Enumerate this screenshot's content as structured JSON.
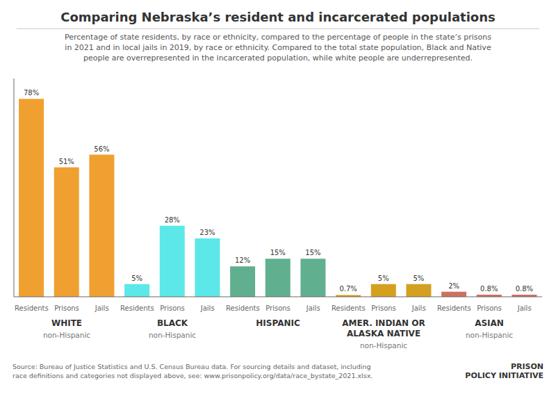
{
  "chart_data": {
    "type": "bar",
    "title": "Comparing Nebraska’s resident and incarcerated populations",
    "subtitle": "Percentage of state residents, by race or ethnicity, compared to the percentage of people in the state’s prisons\nin 2021 and in local jails in 2019, by race or ethnicity. Compared to the total state population, Black and Native\npeople are overrepresented in the incarcerated population, while white people are underrepresented.",
    "categories": [
      "Residents",
      "Prisons",
      "Jails",
      "Residents",
      "Prisons",
      "Jails",
      "Residents",
      "Prisons",
      "Jails",
      "Residents",
      "Prisons",
      "Jails",
      "Residents",
      "Prisons",
      "Jails"
    ],
    "values": [
      78,
      51,
      56,
      5,
      28,
      23,
      12,
      15,
      15,
      0.7,
      5,
      5,
      2,
      0.8,
      0.8
    ],
    "value_labels": [
      "78%",
      "51%",
      "56%",
      "5%",
      "28%",
      "23%",
      "12%",
      "15%",
      "15%",
      "0.7%",
      "5%",
      "5%",
      "2%",
      "0.8%",
      "0.8%"
    ],
    "colors": [
      "#f0a030",
      "#f0a030",
      "#f0a030",
      "#5ce8e8",
      "#5ce8e8",
      "#5ce8e8",
      "#60b090",
      "#60b090",
      "#60b090",
      "#d4a020",
      "#d4a020",
      "#d4a020",
      "#d07060",
      "#d07060",
      "#d07060"
    ],
    "groups": [
      {
        "label": "WHITE",
        "sublabel": "non-Hispanic"
      },
      {
        "label": "BLACK",
        "sublabel": "non-Hispanic"
      },
      {
        "label": "HISPANIC"
      },
      {
        "label": "AMER. INDIAN OR\nALASKA NATIVE",
        "sublabel": "non-Hispanic"
      },
      {
        "label": "ASIAN",
        "sublabel": "non-Hispanic"
      }
    ],
    "ylim": [
      0,
      86
    ],
    "tick_labels": "x",
    "grid": false,
    "data_labels": true,
    "source": "Source: Bureau of Justice Statistics and U.S. Census Bureau data. For sourcing details and dataset, including\nrace definitions and categories not displayed above, see: www.prisonpolicy.org/data/race_bystate_2021.xlsx.",
    "annotations": [
      "PRISON\nPOLICY INITIATIVE"
    ]
  }
}
